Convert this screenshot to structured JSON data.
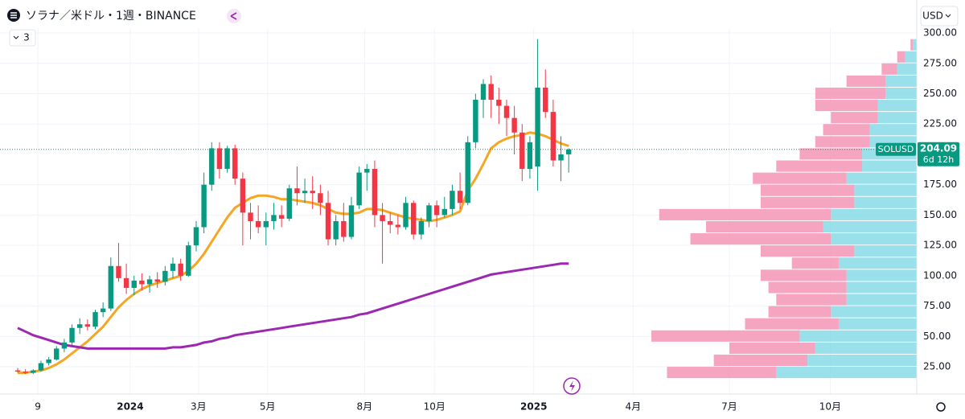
{
  "chart_data": {
    "type": "candlestick",
    "title": "ソラナ／米ドル・1週・BINANCE",
    "currency": "USD",
    "indicator_count": "3",
    "price_label": {
      "symbol": "SOLUSD",
      "price": 204.09,
      "price_label": "204.09",
      "countdown": "6d 12h"
    },
    "categories": [
      null,
      null,
      null,
      null,
      null,
      null,
      null,
      null,
      null,
      null,
      null,
      null,
      null,
      null,
      null,
      null,
      null,
      null,
      null,
      null,
      null,
      null,
      null,
      null,
      null,
      null,
      null,
      null,
      null,
      null,
      null,
      null,
      null,
      null,
      null,
      null,
      null,
      null,
      null,
      null,
      null,
      null,
      null,
      null,
      null,
      null,
      null,
      null,
      null,
      null,
      null,
      null,
      null,
      null,
      null,
      null,
      null,
      null,
      null,
      null,
      null,
      null,
      null,
      null,
      null,
      null,
      null,
      null,
      null,
      null,
      null,
      null
    ],
    "open": [
      22,
      21,
      20,
      22,
      28,
      31,
      40,
      45,
      57,
      60,
      58,
      70,
      73,
      108,
      98,
      90,
      96,
      93,
      97,
      95,
      104,
      110,
      100,
      125,
      140,
      175,
      205,
      188,
      205,
      180,
      152,
      145,
      140,
      145,
      150,
      147,
      172,
      168,
      170,
      168,
      160,
      130,
      145,
      132,
      158,
      185,
      188,
      150,
      145,
      142,
      140,
      160,
      134,
      145,
      158,
      150,
      155,
      170,
      160,
      210,
      245,
      258,
      245,
      240,
      230,
      218,
      188,
      190,
      255,
      235,
      195,
      200
    ],
    "high": [
      24,
      23,
      23,
      30,
      33,
      42,
      48,
      60,
      65,
      64,
      72,
      78,
      115,
      127,
      110,
      100,
      102,
      100,
      103,
      108,
      115,
      114,
      128,
      145,
      185,
      210,
      210,
      207,
      208,
      185,
      160,
      158,
      152,
      160,
      158,
      175,
      190,
      180,
      182,
      175,
      170,
      150,
      160,
      165,
      190,
      192,
      195,
      160,
      152,
      150,
      165,
      162,
      148,
      160,
      162,
      165,
      175,
      185,
      215,
      250,
      262,
      265,
      255,
      245,
      240,
      225,
      215,
      295,
      270,
      245,
      215,
      205
    ],
    "low": [
      20,
      19,
      19,
      21,
      26,
      30,
      37,
      43,
      52,
      55,
      56,
      66,
      71,
      95,
      85,
      84,
      88,
      86,
      90,
      92,
      98,
      96,
      99,
      120,
      135,
      170,
      180,
      185,
      175,
      125,
      130,
      135,
      125,
      138,
      140,
      145,
      158,
      160,
      155,
      150,
      125,
      125,
      128,
      130,
      155,
      170,
      140,
      110,
      135,
      134,
      138,
      130,
      130,
      140,
      140,
      148,
      150,
      155,
      158,
      205,
      230,
      230,
      225,
      215,
      200,
      178,
      180,
      170,
      230,
      190,
      178,
      185
    ],
    "close": [
      21,
      20,
      22,
      28,
      31,
      40,
      45,
      57,
      60,
      58,
      70,
      73,
      108,
      98,
      90,
      96,
      93,
      97,
      95,
      104,
      110,
      100,
      125,
      140,
      175,
      205,
      188,
      205,
      180,
      152,
      145,
      140,
      145,
      150,
      147,
      172,
      168,
      170,
      168,
      160,
      130,
      145,
      132,
      158,
      185,
      188,
      150,
      145,
      142,
      140,
      160,
      134,
      145,
      158,
      150,
      155,
      170,
      160,
      210,
      245,
      258,
      245,
      240,
      230,
      218,
      188,
      210,
      255,
      235,
      195,
      200,
      204.09
    ],
    "up_color": "#089981",
    "down_color": "#f23645",
    "series": [
      {
        "color": "#f5a623",
        "values": [
          20,
          20,
          21,
          22,
          24,
          27,
          31,
          36,
          41,
          46,
          52,
          58,
          66,
          74,
          80,
          85,
          89,
          92,
          94,
          96,
          98,
          100,
          104,
          110,
          118,
          128,
          138,
          148,
          156,
          160,
          164,
          166,
          166,
          165,
          163,
          163,
          162,
          161,
          160,
          158,
          155,
          152,
          151,
          151,
          152,
          155,
          155,
          154,
          152,
          150,
          148,
          147,
          146,
          145,
          146,
          148,
          150,
          153,
          170,
          180,
          192,
          205,
          210,
          213,
          215,
          216,
          218,
          217,
          215,
          212,
          209,
          207
        ]
      },
      {
        "color": "#9c27b0",
        "values": [
          57,
          54,
          51,
          49,
          47,
          45,
          43,
          42,
          41,
          40,
          40,
          40,
          40,
          40,
          40,
          40,
          40,
          40,
          40,
          40,
          41,
          41,
          42,
          43,
          45,
          46,
          48,
          49,
          51,
          52,
          53,
          54,
          55,
          56,
          57,
          58,
          59,
          60,
          61,
          62,
          63,
          64,
          65,
          66,
          68,
          69,
          71,
          73,
          75,
          77,
          79,
          81,
          83,
          85,
          87,
          89,
          91,
          93,
          95,
          97,
          99,
          101,
          102,
          103,
          104,
          105,
          106,
          107,
          108,
          109,
          110,
          110
        ]
      }
    ],
    "volume_profile": {
      "levels": [
        20,
        30,
        40,
        50,
        60,
        70,
        80,
        90,
        100,
        110,
        120,
        130,
        140,
        150,
        160,
        170,
        180,
        190,
        200,
        210,
        220,
        230,
        240,
        250,
        260,
        270,
        280,
        290
      ],
      "up": [
        180,
        140,
        130,
        150,
        100,
        110,
        90,
        90,
        90,
        100,
        80,
        110,
        120,
        110,
        80,
        80,
        90,
        70,
        70,
        60,
        60,
        50,
        50,
        40,
        40,
        25,
        15,
        5
      ],
      "down": [
        140,
        120,
        110,
        190,
        120,
        80,
        90,
        100,
        110,
        60,
        120,
        180,
        150,
        220,
        120,
        120,
        120,
        110,
        80,
        70,
        60,
        60,
        80,
        90,
        50,
        20,
        10,
        3
      ],
      "up_color": "#7fd8e6",
      "down_color": "#f48fb1"
    },
    "xlim": [
      -2.28,
      115.85
    ],
    "xticks": [
      {
        "value": 2.6,
        "label": "9"
      },
      {
        "value": 14.5,
        "label": "2024"
      },
      {
        "value": 23.3,
        "label": "3月"
      },
      {
        "value": 32.2,
        "label": "5月"
      },
      {
        "value": 44.7,
        "label": "8月"
      },
      {
        "value": 53.7,
        "label": "10月"
      },
      {
        "value": 66.5,
        "label": "2025"
      },
      {
        "value": 79.3,
        "label": "4月"
      },
      {
        "value": 91.7,
        "label": "7月"
      },
      {
        "value": 104.7,
        "label": "10月"
      }
    ],
    "ylim": [
      2.5,
      304
    ],
    "yticks": [
      {
        "value": 25,
        "label": "25.00"
      },
      {
        "value": 50,
        "label": "50.00"
      },
      {
        "value": 75,
        "label": "75.00"
      },
      {
        "value": 100,
        "label": "100.00"
      },
      {
        "value": 125,
        "label": "125.00"
      },
      {
        "value": 150,
        "label": "150.00"
      },
      {
        "value": 175,
        "label": "175.00"
      },
      {
        "value": 225,
        "label": "225.00"
      },
      {
        "value": 250,
        "label": "250.00"
      },
      {
        "value": 275,
        "label": "275.00"
      },
      {
        "value": 300,
        "label": "300.00"
      }
    ],
    "grid": true
  }
}
